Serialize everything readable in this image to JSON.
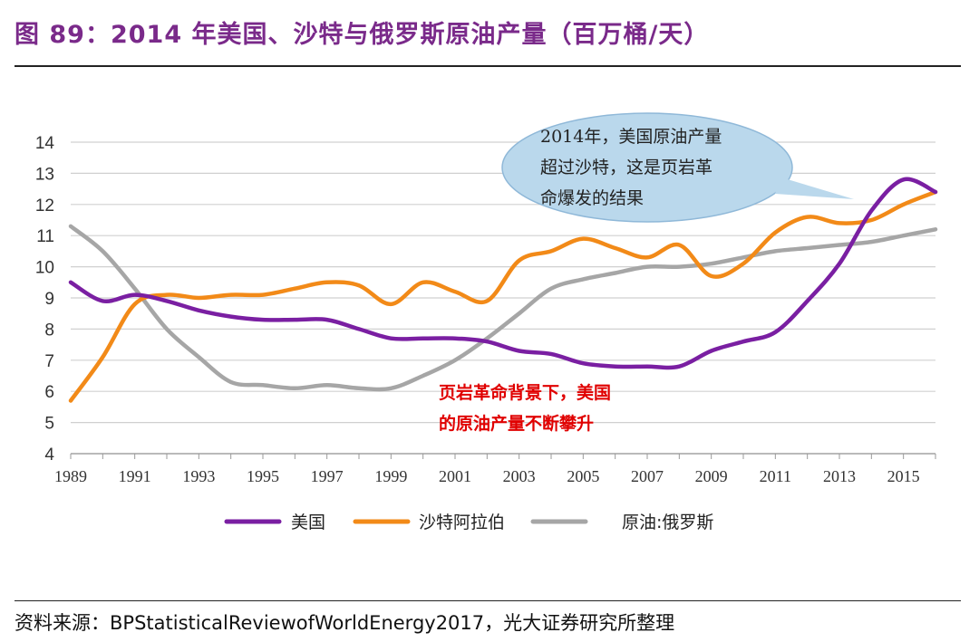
{
  "header": {
    "title": "图 89：2014 年美国、沙特与俄罗斯原油产量（百万桶/天）"
  },
  "footer": {
    "source": "资料来源：BPStatisticalReviewofWorldEnergy2017，光大证券研究所整理"
  },
  "chart_data": {
    "type": "line",
    "title": "图 89：2014 年美国、沙特与俄罗斯原油产量（百万桶/天）",
    "xlabel": "",
    "ylabel": "",
    "ylim": [
      4,
      14
    ],
    "xlim": [
      1989,
      2016
    ],
    "yticks": [
      4,
      5,
      6,
      7,
      8,
      9,
      10,
      11,
      12,
      13,
      14
    ],
    "xticks": [
      1989,
      1991,
      1993,
      1995,
      1997,
      1999,
      2001,
      2003,
      2005,
      2007,
      2009,
      2011,
      2013,
      2015
    ],
    "legend_position": "bottom",
    "series": [
      {
        "name": "美国",
        "color": "#7a1fa2",
        "x": [
          1989,
          1990,
          1991,
          1992,
          1993,
          1994,
          1995,
          1996,
          1997,
          1998,
          1999,
          2000,
          2001,
          2002,
          2003,
          2004,
          2005,
          2006,
          2007,
          2008,
          2009,
          2010,
          2011,
          2012,
          2013,
          2014,
          2015,
          2016
        ],
        "values": [
          9.5,
          8.9,
          9.1,
          8.9,
          8.6,
          8.4,
          8.3,
          8.3,
          8.3,
          8.0,
          7.7,
          7.7,
          7.7,
          7.6,
          7.3,
          7.2,
          6.9,
          6.8,
          6.8,
          6.8,
          7.3,
          7.6,
          7.9,
          8.9,
          10.1,
          11.8,
          12.8,
          12.4
        ]
      },
      {
        "name": "沙特阿拉伯",
        "color": "#f28a18",
        "x": [
          1989,
          1990,
          1991,
          1992,
          1993,
          1994,
          1995,
          1996,
          1997,
          1998,
          1999,
          2000,
          2001,
          2002,
          2003,
          2004,
          2005,
          2006,
          2007,
          2008,
          2009,
          2010,
          2011,
          2012,
          2013,
          2014,
          2015,
          2016
        ],
        "values": [
          5.7,
          7.1,
          8.8,
          9.1,
          9.0,
          9.1,
          9.1,
          9.3,
          9.5,
          9.4,
          8.8,
          9.5,
          9.2,
          8.9,
          10.2,
          10.5,
          10.9,
          10.6,
          10.3,
          10.7,
          9.7,
          10.1,
          11.1,
          11.6,
          11.4,
          11.5,
          12.0,
          12.4
        ]
      },
      {
        "name": "原油:俄罗斯",
        "color": "#a6a6a6",
        "x": [
          1989,
          1990,
          1991,
          1992,
          1993,
          1994,
          1995,
          1996,
          1997,
          1998,
          1999,
          2000,
          2001,
          2002,
          2003,
          2004,
          2005,
          2006,
          2007,
          2008,
          2009,
          2010,
          2011,
          2012,
          2013,
          2014,
          2015,
          2016
        ],
        "values": [
          11.3,
          10.5,
          9.3,
          8.0,
          7.1,
          6.3,
          6.2,
          6.1,
          6.2,
          6.1,
          6.1,
          6.5,
          7.0,
          7.7,
          8.5,
          9.3,
          9.6,
          9.8,
          10.0,
          10.0,
          10.1,
          10.3,
          10.5,
          10.6,
          10.7,
          10.8,
          11.0,
          11.2
        ]
      }
    ],
    "annotations": [
      {
        "id": "callout",
        "lines": [
          "2014年，美国原油产量",
          "超过沙特，这是页岩革",
          "命爆发的结果"
        ]
      },
      {
        "id": "red-note",
        "lines": [
          "页岩革命背景下，美国",
          "的原油产量不断攀升"
        ]
      }
    ]
  }
}
